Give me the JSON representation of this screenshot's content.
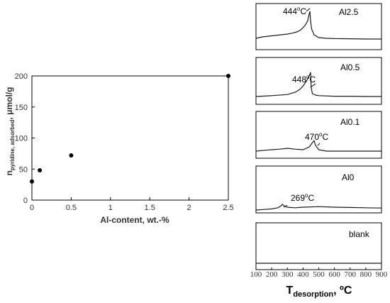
{
  "chart_data": [
    {
      "type": "scatter",
      "title": "",
      "xlabel": "Al-content, wt.-%",
      "ylabel_main": "n",
      "ylabel_sub": "pyridine, adsorbed",
      "ylabel_unit": ", μmol/g",
      "xlim": [
        0,
        2.5
      ],
      "ylim": [
        0,
        200
      ],
      "xticks": [
        "0",
        "0.5",
        "1",
        "1.5",
        "2",
        "2.5"
      ],
      "yticks": [
        "0",
        "50",
        "100",
        "150",
        "200"
      ],
      "x": [
        0,
        0.1,
        0.5,
        2.5
      ],
      "y": [
        30,
        48,
        72,
        200
      ],
      "marker_color": "#000000",
      "grid": false
    },
    {
      "type": "line",
      "title": "",
      "xlabel_main": "T",
      "xlabel_sub": "desorption",
      "xlabel_unit": ", ºC",
      "xlim": [
        100,
        900
      ],
      "xticks": [
        "100",
        "200",
        "300",
        "400",
        "500",
        "600",
        "700",
        "800",
        "900"
      ],
      "line_color": "#1a1a1a",
      "panels": [
        {
          "label": "Al2.5",
          "peak_label": "444",
          "peak_unit": "C",
          "x": [
            100,
            140,
            180,
            220,
            260,
            300,
            330,
            360,
            380,
            400,
            415,
            430,
            440,
            444,
            448,
            455,
            470,
            500,
            550,
            600,
            700,
            800,
            900
          ],
          "y": [
            0.3,
            0.4,
            0.45,
            0.5,
            0.55,
            0.6,
            0.66,
            0.75,
            0.85,
            1.05,
            1.25,
            1.55,
            2.05,
            2.2,
            1.5,
            0.95,
            0.55,
            0.35,
            0.3,
            0.28,
            0.27,
            0.25,
            0.25
          ]
        },
        {
          "label": "Al0.5",
          "peak_label": "448",
          "peak_unit": "C",
          "x": [
            100,
            200,
            300,
            350,
            380,
            400,
            420,
            440,
            448,
            452,
            460,
            480,
            500,
            600,
            700,
            800,
            900
          ],
          "y": [
            0.05,
            0.08,
            0.12,
            0.2,
            0.3,
            0.42,
            0.58,
            0.78,
            0.9,
            0.35,
            0.15,
            0.1,
            0.08,
            0.06,
            0.06,
            0.05,
            0.05
          ]
        },
        {
          "label": "Al0.1",
          "peak_label": "470",
          "peak_unit": "C",
          "x": [
            100,
            150,
            200,
            250,
            300,
            350,
            400,
            440,
            460,
            470,
            480,
            500,
            550,
            600,
            700,
            800,
            900
          ],
          "y": [
            0.05,
            0.08,
            0.1,
            0.12,
            0.15,
            0.12,
            0.1,
            0.2,
            0.35,
            0.42,
            0.25,
            0.1,
            0.05,
            0.05,
            0.05,
            0.05,
            0.05
          ]
        },
        {
          "label": "Al0",
          "peak_label": "269",
          "peak_unit": "C",
          "x": [
            100,
            150,
            200,
            240,
            260,
            269,
            280,
            300,
            350,
            400,
            500,
            600,
            700,
            800,
            900
          ],
          "y": [
            0.0,
            0.02,
            0.04,
            0.08,
            0.15,
            0.2,
            0.14,
            0.1,
            0.08,
            0.1,
            0.12,
            0.1,
            0.09,
            0.08,
            0.07
          ],
          "peak_fmt": "269"
        },
        {
          "label": "blank",
          "peak_label": "",
          "peak_unit": "",
          "x": [
            100,
            500,
            900
          ],
          "y": [
            0.0,
            0.0,
            0.0
          ]
        }
      ]
    }
  ]
}
